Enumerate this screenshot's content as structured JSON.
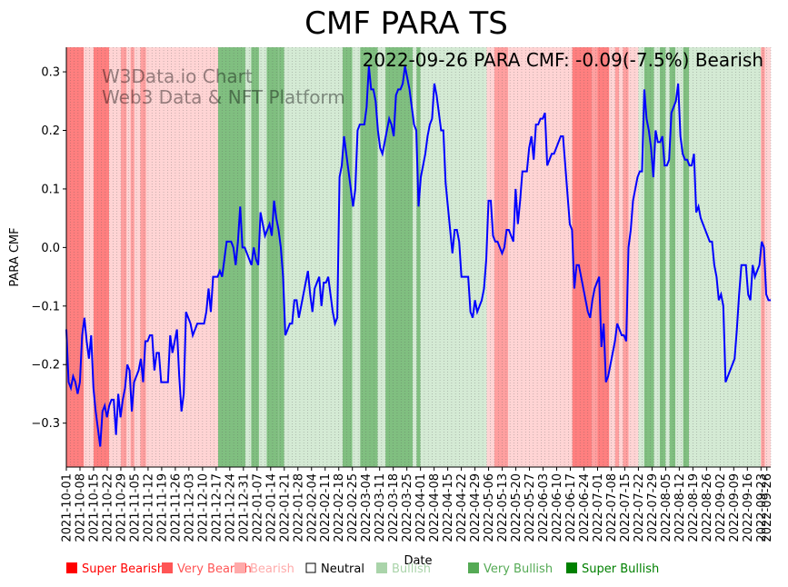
{
  "chart_data": {
    "type": "line",
    "title": "CMF PARA TS",
    "annotation": "2022-09-26 PARA CMF: -0.09(-7.5%) Bearish",
    "watermark": [
      "W3Data.io Chart",
      "Web3 Data & NFT Platform"
    ],
    "xlabel": "Date",
    "ylabel": "PARA CMF",
    "ylim": [
      -0.375,
      0.342
    ],
    "yticks": [
      -0.3,
      -0.2,
      -0.1,
      0.0,
      0.1,
      0.2,
      0.3
    ],
    "ytick_labels": [
      "−0.3",
      "−0.2",
      "−0.1",
      "0.0",
      "0.1",
      "0.2",
      "0.3"
    ],
    "x_start": "2021-10-01",
    "x_end": "2022-09-28",
    "xtick_labels": [
      "2021-10-01",
      "2021-10-08",
      "2021-10-15",
      "2021-10-22",
      "2021-10-29",
      "2021-11-05",
      "2021-11-12",
      "2021-11-19",
      "2021-11-26",
      "2021-12-03",
      "2021-12-10",
      "2021-12-17",
      "2021-12-24",
      "2021-12-31",
      "2022-01-07",
      "2022-01-14",
      "2022-01-21",
      "2022-01-28",
      "2022-02-04",
      "2022-02-11",
      "2022-02-18",
      "2022-02-25",
      "2022-03-04",
      "2022-03-11",
      "2022-03-18",
      "2022-03-25",
      "2022-04-01",
      "2022-04-08",
      "2022-04-15",
      "2022-04-22",
      "2022-04-29",
      "2022-05-06",
      "2022-05-13",
      "2022-05-20",
      "2022-05-27",
      "2022-06-03",
      "2022-06-10",
      "2022-06-17",
      "2022-06-24",
      "2022-07-01",
      "2022-07-08",
      "2022-07-15",
      "2022-07-22",
      "2022-07-29",
      "2022-08-05",
      "2022-08-12",
      "2022-08-19",
      "2022-08-26",
      "2022-09-02",
      "2022-09-09",
      "2022-09-16",
      "2022-09-23",
      "2022-09-26"
    ],
    "series": [
      {
        "name": "PARA CMF",
        "color": "#0000ff",
        "values": [
          -0.14,
          -0.23,
          -0.24,
          -0.22,
          -0.23,
          -0.25,
          -0.23,
          -0.15,
          -0.12,
          -0.16,
          -0.19,
          -0.15,
          -0.24,
          -0.28,
          -0.31,
          -0.34,
          -0.28,
          -0.27,
          -0.29,
          -0.27,
          -0.26,
          -0.26,
          -0.32,
          -0.25,
          -0.29,
          -0.26,
          -0.24,
          -0.2,
          -0.21,
          -0.28,
          -0.23,
          -0.22,
          -0.21,
          -0.19,
          -0.23,
          -0.16,
          -0.16,
          -0.15,
          -0.15,
          -0.21,
          -0.18,
          -0.18,
          -0.23,
          -0.23,
          -0.23,
          -0.23,
          -0.15,
          -0.18,
          -0.16,
          -0.14,
          -0.22,
          -0.28,
          -0.25,
          -0.11,
          -0.12,
          -0.13,
          -0.15,
          -0.14,
          -0.13,
          -0.13,
          -0.13,
          -0.13,
          -0.11,
          -0.07,
          -0.11,
          -0.05,
          -0.05,
          -0.05,
          -0.04,
          -0.05,
          -0.02,
          0.01,
          0.01,
          0.01,
          0.0,
          -0.03,
          0.01,
          0.07,
          0.0,
          0.0,
          -0.01,
          -0.02,
          -0.03,
          0.0,
          -0.02,
          -0.03,
          0.06,
          0.04,
          0.02,
          0.03,
          0.04,
          0.02,
          0.08,
          0.05,
          0.03,
          0.0,
          -0.05,
          -0.15,
          -0.14,
          -0.13,
          -0.13,
          -0.09,
          -0.09,
          -0.12,
          -0.1,
          -0.08,
          -0.06,
          -0.04,
          -0.08,
          -0.11,
          -0.07,
          -0.06,
          -0.05,
          -0.1,
          -0.06,
          -0.06,
          -0.05,
          -0.08,
          -0.11,
          -0.13,
          -0.12,
          0.12,
          0.14,
          0.19,
          0.16,
          0.13,
          0.1,
          0.07,
          0.1,
          0.2,
          0.21,
          0.21,
          0.21,
          0.24,
          0.31,
          0.27,
          0.27,
          0.25,
          0.2,
          0.17,
          0.16,
          0.18,
          0.2,
          0.22,
          0.21,
          0.19,
          0.26,
          0.27,
          0.27,
          0.28,
          0.31,
          0.29,
          0.27,
          0.24,
          0.21,
          0.2,
          0.07,
          0.12,
          0.14,
          0.16,
          0.19,
          0.21,
          0.22,
          0.28,
          0.26,
          0.23,
          0.2,
          0.2,
          0.11,
          0.07,
          0.03,
          -0.01,
          0.03,
          0.03,
          0.01,
          -0.05,
          -0.05,
          -0.05,
          -0.05,
          -0.11,
          -0.12,
          -0.09,
          -0.11,
          -0.1,
          -0.09,
          -0.07,
          -0.02,
          0.08,
          0.08,
          0.02,
          0.01,
          0.01,
          0.0,
          -0.01,
          0.0,
          0.03,
          0.03,
          0.02,
          0.01,
          0.1,
          0.04,
          0.08,
          0.13,
          0.13,
          0.13,
          0.17,
          0.19,
          0.15,
          0.21,
          0.21,
          0.22,
          0.22,
          0.23,
          0.14,
          0.15,
          0.16,
          0.16,
          0.17,
          0.18,
          0.19,
          0.19,
          0.14,
          0.09,
          0.04,
          0.03,
          -0.07,
          -0.03,
          -0.03,
          -0.05,
          -0.07,
          -0.09,
          -0.11,
          -0.12,
          -0.09,
          -0.07,
          -0.06,
          -0.05,
          -0.17,
          -0.13,
          -0.23,
          -0.22,
          -0.2,
          -0.18,
          -0.16,
          -0.13,
          -0.14,
          -0.15,
          -0.15,
          -0.16,
          0.0,
          0.03,
          0.08,
          0.1,
          0.12,
          0.13,
          0.13,
          0.27,
          0.22,
          0.2,
          0.17,
          0.12,
          0.2,
          0.18,
          0.18,
          0.19,
          0.14,
          0.14,
          0.15,
          0.23,
          0.24,
          0.25,
          0.28,
          0.19,
          0.16,
          0.15,
          0.15,
          0.14,
          0.14,
          0.16,
          0.06,
          0.07,
          0.05,
          0.04,
          0.03,
          0.02,
          0.01,
          0.01,
          -0.03,
          -0.05,
          -0.09,
          -0.08,
          -0.1,
          -0.23,
          -0.22,
          -0.21,
          -0.2,
          -0.19,
          -0.14,
          -0.08,
          -0.03,
          -0.03,
          -0.03,
          -0.08,
          -0.09,
          -0.03,
          -0.05,
          -0.04,
          -0.03,
          0.01,
          0.0,
          -0.08,
          -0.09,
          -0.09
        ]
      }
    ],
    "regimes": [
      {
        "start": "2021-10-01",
        "end": "2021-10-10",
        "class": "super-bearish"
      },
      {
        "start": "2021-10-10",
        "end": "2021-10-15",
        "class": "bearish"
      },
      {
        "start": "2021-10-15",
        "end": "2021-10-23",
        "class": "super-bearish"
      },
      {
        "start": "2021-10-23",
        "end": "2021-10-29",
        "class": "bearish"
      },
      {
        "start": "2021-10-29",
        "end": "2021-11-01",
        "class": "very-bearish"
      },
      {
        "start": "2021-11-01",
        "end": "2021-11-03",
        "class": "bearish"
      },
      {
        "start": "2021-11-03",
        "end": "2021-11-05",
        "class": "very-bearish"
      },
      {
        "start": "2021-11-05",
        "end": "2021-11-08",
        "class": "bearish"
      },
      {
        "start": "2021-11-08",
        "end": "2021-11-11",
        "class": "very-bearish"
      },
      {
        "start": "2021-11-11",
        "end": "2021-12-18",
        "class": "bearish"
      },
      {
        "start": "2021-12-18",
        "end": "2022-01-01",
        "class": "very-bullish"
      },
      {
        "start": "2022-01-01",
        "end": "2022-01-04",
        "class": "bullish"
      },
      {
        "start": "2022-01-04",
        "end": "2022-01-08",
        "class": "very-bullish"
      },
      {
        "start": "2022-01-08",
        "end": "2022-01-12",
        "class": "bullish"
      },
      {
        "start": "2022-01-12",
        "end": "2022-01-18",
        "class": "very-bullish"
      },
      {
        "start": "2022-01-18",
        "end": "2022-01-21",
        "class": "very-bullish"
      },
      {
        "start": "2022-01-21",
        "end": "2022-02-20",
        "class": "bullish"
      },
      {
        "start": "2022-02-20",
        "end": "2022-02-25",
        "class": "very-bullish"
      },
      {
        "start": "2022-02-25",
        "end": "2022-03-01",
        "class": "bullish"
      },
      {
        "start": "2022-03-01",
        "end": "2022-03-10",
        "class": "very-bullish"
      },
      {
        "start": "2022-03-10",
        "end": "2022-03-14",
        "class": "bullish"
      },
      {
        "start": "2022-03-14",
        "end": "2022-03-28",
        "class": "very-bullish"
      },
      {
        "start": "2022-03-28",
        "end": "2022-03-30",
        "class": "bullish"
      },
      {
        "start": "2022-03-30",
        "end": "2022-04-01",
        "class": "very-bullish"
      },
      {
        "start": "2022-04-01",
        "end": "2022-05-05",
        "class": "bullish"
      },
      {
        "start": "2022-05-05",
        "end": "2022-05-09",
        "class": "bearish"
      },
      {
        "start": "2022-05-09",
        "end": "2022-05-16",
        "class": "very-bearish"
      },
      {
        "start": "2022-05-16",
        "end": "2022-06-18",
        "class": "bearish"
      },
      {
        "start": "2022-06-18",
        "end": "2022-06-28",
        "class": "super-bearish"
      },
      {
        "start": "2022-06-28",
        "end": "2022-07-01",
        "class": "very-bearish"
      },
      {
        "start": "2022-07-01",
        "end": "2022-07-07",
        "class": "super-bearish"
      },
      {
        "start": "2022-07-07",
        "end": "2022-07-10",
        "class": "bearish"
      },
      {
        "start": "2022-07-10",
        "end": "2022-07-12",
        "class": "very-bearish"
      },
      {
        "start": "2022-07-12",
        "end": "2022-07-14",
        "class": "bearish"
      },
      {
        "start": "2022-07-14",
        "end": "2022-07-17",
        "class": "very-bearish"
      },
      {
        "start": "2022-07-17",
        "end": "2022-07-22",
        "class": "bearish"
      },
      {
        "start": "2022-07-22",
        "end": "2022-07-25",
        "class": "bullish"
      },
      {
        "start": "2022-07-25",
        "end": "2022-07-30",
        "class": "very-bullish"
      },
      {
        "start": "2022-07-30",
        "end": "2022-08-02",
        "class": "bullish"
      },
      {
        "start": "2022-08-02",
        "end": "2022-08-05",
        "class": "very-bullish"
      },
      {
        "start": "2022-08-05",
        "end": "2022-08-07",
        "class": "bullish"
      },
      {
        "start": "2022-08-07",
        "end": "2022-08-10",
        "class": "very-bullish"
      },
      {
        "start": "2022-08-10",
        "end": "2022-08-14",
        "class": "bullish"
      },
      {
        "start": "2022-08-14",
        "end": "2022-08-17",
        "class": "very-bullish"
      },
      {
        "start": "2022-08-17",
        "end": "2022-09-23",
        "class": "bullish"
      },
      {
        "start": "2022-09-23",
        "end": "2022-09-25",
        "class": "very-bearish"
      },
      {
        "start": "2022-09-25",
        "end": "2022-09-28",
        "class": "bearish"
      }
    ],
    "legend": [
      {
        "key": "super-bearish",
        "label": "Super Bearish",
        "color": "#ff0000"
      },
      {
        "key": "very-bearish",
        "label": "Very Bearish",
        "color": "#ff5555"
      },
      {
        "key": "bearish",
        "label": "Bearish",
        "color": "#ffaaaa"
      },
      {
        "key": "neutral",
        "label": "Neutral",
        "color": "#000000"
      },
      {
        "key": "bullish",
        "label": "Bullish",
        "color": "#aad4aa"
      },
      {
        "key": "very-bullish",
        "label": "Very Bullish",
        "color": "#55aa55"
      },
      {
        "key": "super-bullish",
        "label": "Super Bullish",
        "color": "#008000"
      }
    ],
    "regime_colors": {
      "super-bearish": "#ff7f7f",
      "very-bearish": "#ff9f9f",
      "bearish": "#ffd4d4",
      "neutral": "#ffffff",
      "bullish": "#d4ead4",
      "very-bullish": "#80bf80",
      "super-bullish": "#4d9f4d"
    }
  }
}
